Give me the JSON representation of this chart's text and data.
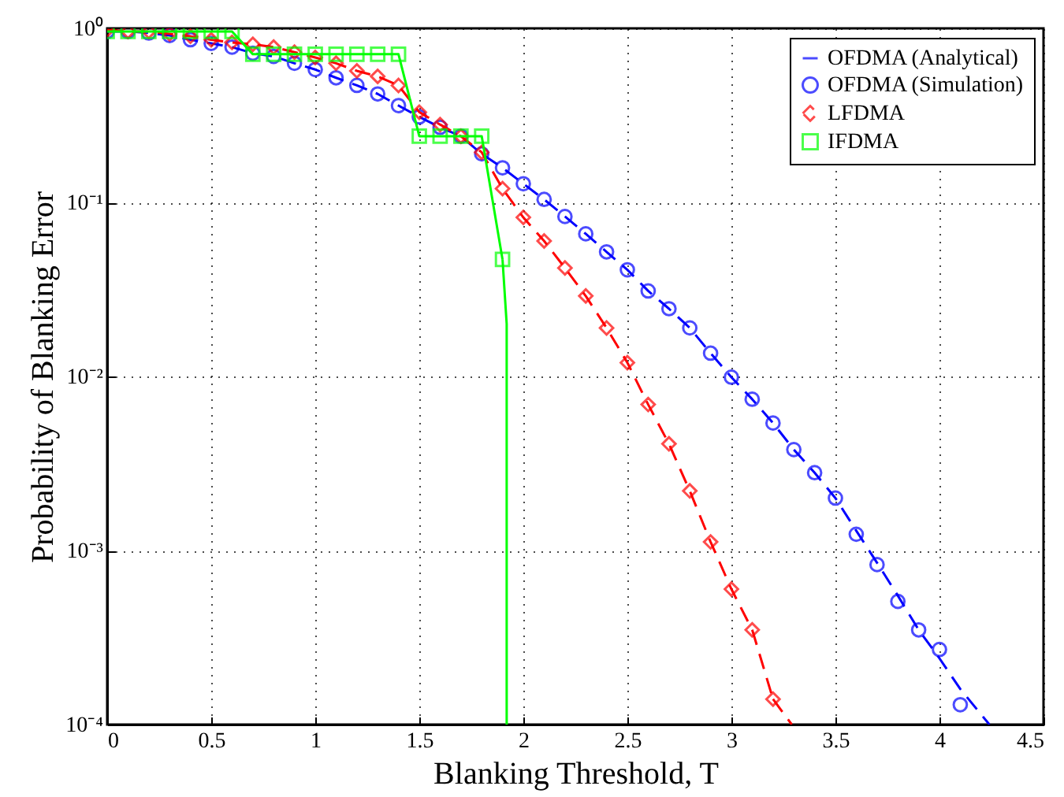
{
  "chart_data": {
    "type": "line",
    "xlabel": "Blanking Threshold, T",
    "ylabel": "Probability of Blanking Error",
    "log": "y",
    "grid": true,
    "legend": "top right",
    "xlim": [
      0,
      4.5
    ],
    "xticks": [
      0,
      0.5,
      1,
      1.5,
      2,
      2.5,
      3,
      3.5,
      4,
      {
        "value": 4.5,
        "label": "4.5"
      }
    ],
    "ylim": [
      0.0001,
      1
    ],
    "yticks": [
      {
        "value": 0.0001,
        "label": "10⁻⁴"
      },
      {
        "value": 0.001,
        "label": "10⁻³"
      },
      {
        "value": 0.01,
        "label": "10⁻²"
      },
      {
        "value": 0.1,
        "label": "10⁻¹"
      },
      {
        "value": 1,
        "label": "10⁰"
      }
    ],
    "series": [
      {
        "name": "OFDMA (Analytical)",
        "type": "line",
        "color": "#0000ff",
        "line_style": "dashed",
        "marker": "none",
        "x": [
          0,
          0.1,
          0.2,
          0.3,
          0.4,
          0.5,
          0.6,
          0.7,
          0.8,
          0.9,
          1,
          1.1,
          1.2,
          1.3,
          1.4,
          1.5,
          1.6,
          1.7,
          1.8,
          1.9,
          2,
          2.1,
          2.2,
          2.3,
          2.4,
          2.5,
          2.6,
          2.7,
          2.8,
          2.9,
          3,
          3.1,
          3.2,
          3.3,
          3.4,
          3.5,
          3.6,
          3.7,
          3.8,
          3.9,
          4,
          4.1,
          4.24
        ],
        "values": [
          0.96,
          0.96,
          0.94,
          0.91,
          0.86,
          0.82,
          0.78,
          0.72,
          0.69,
          0.63,
          0.58,
          0.52,
          0.47,
          0.42,
          0.36,
          0.31,
          0.27,
          0.24,
          0.19,
          0.158,
          0.128,
          0.104,
          0.083,
          0.066,
          0.052,
          0.041,
          0.031,
          0.0245,
          0.019,
          0.0136,
          0.0099,
          0.0074,
          0.0054,
          0.0038,
          0.0028,
          0.002,
          0.0013,
          0.00085,
          0.00055,
          0.00035,
          0.00024,
          0.00016,
          0.0001
        ]
      },
      {
        "name": "OFDMA (Simulation)",
        "type": "scatter",
        "color": "#0000ff",
        "marker": "circle",
        "x": [
          0,
          0.1,
          0.2,
          0.3,
          0.4,
          0.5,
          0.6,
          0.7,
          0.8,
          0.9,
          1,
          1.1,
          1.2,
          1.3,
          1.4,
          1.5,
          1.6,
          1.7,
          1.8,
          1.9,
          2,
          2.1,
          2.2,
          2.3,
          2.4,
          2.5,
          2.6,
          2.7,
          2.8,
          2.9,
          3,
          3.1,
          3.2,
          3.3,
          3.4,
          3.5,
          3.6,
          3.7,
          3.8,
          3.9,
          4,
          4.1
        ],
        "values": [
          0.96,
          0.96,
          0.94,
          0.91,
          0.86,
          0.82,
          0.78,
          0.72,
          0.69,
          0.63,
          0.58,
          0.52,
          0.47,
          0.42,
          0.36,
          0.31,
          0.27,
          0.24,
          0.19,
          0.158,
          0.128,
          0.104,
          0.083,
          0.066,
          0.052,
          0.041,
          0.031,
          0.0245,
          0.019,
          0.0136,
          0.0099,
          0.0074,
          0.0054,
          0.0038,
          0.0028,
          0.002,
          0.00124,
          0.00083,
          0.00051,
          0.00035,
          0.00027,
          0.00013
        ]
      },
      {
        "name": "LFDMA",
        "type": "line",
        "color": "#ff0000",
        "line_style": "dashed",
        "marker": "diamond",
        "x": [
          0,
          0.1,
          0.2,
          0.3,
          0.4,
          0.5,
          0.6,
          0.7,
          0.8,
          0.9,
          1,
          1.1,
          1.2,
          1.3,
          1.4,
          1.5,
          1.6,
          1.7,
          1.8,
          1.9,
          2,
          2.1,
          2.2,
          2.3,
          2.4,
          2.5,
          2.6,
          2.7,
          2.8,
          2.9,
          3,
          3.1,
          3.2
        ],
        "values": [
          0.98,
          0.96,
          0.96,
          0.93,
          0.9,
          0.86,
          0.83,
          0.81,
          0.78,
          0.73,
          0.68,
          0.63,
          0.57,
          0.53,
          0.47,
          0.33,
          0.28,
          0.24,
          0.194,
          0.12,
          0.082,
          0.06,
          0.042,
          0.029,
          0.019,
          0.012,
          0.0069,
          0.0041,
          0.0022,
          0.00112,
          0.0006,
          0.00035,
          0.00014
        ]
      },
      {
        "type": "line",
        "color": "#ff0000",
        "line_style": "dashed",
        "marker": "none",
        "x": [
          3.2,
          3.29
        ],
        "values": [
          0.00014,
          0.0001
        ]
      },
      {
        "name": "IFDMA",
        "type": "line",
        "color": "#00ff00",
        "line_style": "solid",
        "marker": "square",
        "x": [
          0,
          0.1,
          0.2,
          0.3,
          0.4,
          0.5,
          0.6,
          0.7,
          0.8,
          0.9,
          1,
          1.1,
          1.2,
          1.3,
          1.4,
          1.5,
          1.6,
          1.7,
          1.8,
          1.9
        ],
        "values": [
          0.96,
          0.96,
          0.96,
          0.96,
          0.96,
          0.96,
          0.96,
          0.71,
          0.71,
          0.71,
          0.71,
          0.71,
          0.71,
          0.71,
          0.71,
          0.24,
          0.24,
          0.24,
          0.24,
          0.047
        ]
      },
      {
        "type": "line",
        "color": "#00ff00",
        "line_style": "solid",
        "marker": "none",
        "x": [
          1.9,
          1.92,
          1.92
        ],
        "values": [
          0.047,
          0.02,
          0.0001
        ]
      }
    ]
  }
}
